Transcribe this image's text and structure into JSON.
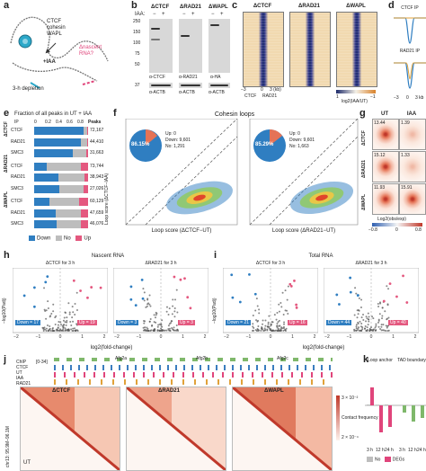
{
  "panels": {
    "a": {
      "letter": "a",
      "ctcf": "CTCF",
      "cohesin": "cohesin",
      "wapl": "WAPL",
      "nascent": "Δnascent RNA?",
      "iaa": "+IAA",
      "depletion": "3-h depletion"
    },
    "b": {
      "letter": "b",
      "conditions": [
        "ΔCTCF",
        "ΔRAD21",
        "ΔWAPL"
      ],
      "iaa_label": "IAA:",
      "iaa_states": [
        "−",
        "+",
        "−",
        "+",
        "−",
        "+"
      ],
      "markers": [
        "250",
        "150",
        "100",
        "75",
        "50",
        "37"
      ],
      "antibodies": [
        "α-CTCF",
        "α-RAD21",
        "α-HA"
      ],
      "loading": [
        "α-ACTB",
        "α-ACTB",
        "α-ACTB"
      ]
    },
    "c": {
      "letter": "c",
      "conditions": [
        "ΔCTCF",
        "ΔRAD21",
        "ΔWAPL"
      ],
      "axis": [
        "−3",
        "0",
        "3 (kb)"
      ],
      "anchors": [
        "CTCF",
        "RAD21"
      ],
      "scale": [
        "1",
        "−1"
      ],
      "scale_label": "log2(IAA/UT)"
    },
    "d": {
      "letter": "d",
      "titles": [
        "CTCF IP",
        "RAD21 IP"
      ],
      "ylabel": "Differential ChIP–seq signals (IAA/UT)",
      "lines": [
        "ΔCTCF",
        "ΔRAD21",
        "ΔWAPL"
      ],
      "ticks": [
        "0",
        "−0.5"
      ],
      "x_ticks": [
        "−3",
        "0",
        "3 kb"
      ]
    },
    "e": {
      "letter": "e",
      "title": "Fraction of all peaks in UT + IAA",
      "ip_label": "IP",
      "axis": [
        "0",
        "0.2",
        "0.4",
        "0.6",
        "0.8"
      ],
      "peaks_label": "Peaks",
      "groups": [
        "ΔCTCF",
        "ΔRAD21",
        "ΔWAPL"
      ],
      "rows": [
        {
          "ip": "CTCF",
          "peaks": "72,167",
          "down": 0.92,
          "no": 0.07
        },
        {
          "ip": "RAD21",
          "peaks": "44,410",
          "down": 0.86,
          "no": 0.12
        },
        {
          "ip": "SMC3",
          "peaks": "31,663",
          "down": 0.72,
          "no": 0.25
        },
        {
          "ip": "CTCF",
          "peaks": "73,744",
          "down": 0.24,
          "no": 0.62
        },
        {
          "ip": "RAD21",
          "peaks": "38,943",
          "down": 0.45,
          "no": 0.48
        },
        {
          "ip": "SMC3",
          "peaks": "27,026",
          "down": 0.47,
          "no": 0.45
        },
        {
          "ip": "CTCF",
          "peaks": "60,129",
          "down": 0.28,
          "no": 0.55
        },
        {
          "ip": "RAD21",
          "peaks": "47,659",
          "down": 0.4,
          "no": 0.47
        },
        {
          "ip": "SMC3",
          "peaks": "46,076",
          "down": 0.42,
          "no": 0.45
        }
      ],
      "legend": [
        "Down",
        "No",
        "Up"
      ]
    },
    "f": {
      "letter": "f",
      "title": "Cohesin loops",
      "left": {
        "pie_pct": "86.15%",
        "legend": [
          "Up: 0",
          "Down: 9,601",
          "No: 1,291"
        ],
        "xlabel": "Loop score (ΔCTCF−UT)",
        "ylabel": "Loop score (ΔCTCF−IAA)"
      },
      "right": {
        "pie_pct": "85.29%",
        "legend": [
          "Up: 0",
          "Down: 9,601",
          "No: 1,663"
        ],
        "xlabel": "Loop score (ΔRAD21−UT)",
        "ylabel": "Loop score (ΔRAD21−IAA)"
      }
    },
    "g": {
      "letter": "g",
      "cols": [
        "UT",
        "IAA"
      ],
      "rows": [
        {
          "name": "ΔCTCF",
          "ut": "13.44",
          "iaa": "1.39"
        },
        {
          "name": "ΔRAD21",
          "ut": "15.12",
          "iaa": "1.33"
        },
        {
          "name": "ΔWAPL",
          "ut": "11.93",
          "iaa": "15.91"
        }
      ],
      "scale_label": "Log2(obs/exp)",
      "scale_ticks": [
        "−0.8",
        "0",
        "0.8"
      ]
    },
    "h": {
      "letter": "h",
      "title": "Nascent RNA",
      "plots": [
        {
          "title": "ΔCTCF for 3 h",
          "down": "Down = 17",
          "up": "Up = 19"
        },
        {
          "title": "ΔRAD21 for 3 h",
          "down": "Down = 3",
          "up": "Up = 3"
        }
      ],
      "xlabel": "log2(fold-change)",
      "ylabel": "−log10(Padj)",
      "x_ticks": [
        "−2",
        "−1",
        "0",
        "1",
        "2"
      ],
      "genes": [
        "Tmem",
        "Dynll",
        "Arf",
        "Rac",
        "Thy1",
        "Nr4a1",
        "Hdx",
        "Jun",
        "Fos",
        "Egr1",
        "Gdf9"
      ]
    },
    "i": {
      "letter": "i",
      "title": "Total RNA",
      "plots": [
        {
          "title": "ΔCTCF for 3 h",
          "down": "Down = 21",
          "up": "Up = 16"
        },
        {
          "title": "ΔRAD21 for 3 h",
          "down": "Down = 44",
          "up": "Up = 40"
        }
      ],
      "xlabel": "log2(fold-change)",
      "ylabel": "−log10(Padj)",
      "x_ticks": [
        "−2",
        "−1",
        "0",
        "1",
        "2"
      ],
      "genes": [
        "Clspn",
        "Pcdh",
        "Ccne1",
        "Fgf5",
        "Usp",
        "Ier2",
        "Fos",
        "Cenpf",
        "Snap",
        "Myc"
      ]
    },
    "j": {
      "letter": "j",
      "genes": [
        "Afg2a",
        "Afg2b",
        "Afg2c"
      ],
      "tracks": [
        "ChIP",
        "CTCF",
        "UT",
        "IAA",
        "RAD21"
      ],
      "track_scale": "[0-34]",
      "maps": [
        "ΔCTCF",
        "ΔRAD21",
        "ΔWAPL"
      ],
      "corner": "UT",
      "coord": "chr13: 95.9M–96.1M",
      "scale": [
        "3 × 10⁻²",
        "2 × 10⁻⁴"
      ],
      "scale_label": "Contact frequency"
    },
    "k": {
      "letter": "k",
      "left": {
        "title": "Loop anchor",
        "ylabel": "log2(enrichment at 3D feature)",
        "times": [
          "3 h",
          "12 h",
          "24 h"
        ],
        "legend": [
          "No",
          "DEGs"
        ]
      },
      "right": {
        "title": "TAD boundary",
        "times": [
          "3 h",
          "12 h",
          "24 h"
        ],
        "legend": [
          "No",
          "DEGs"
        ]
      },
      "series": {
        "no": [
          0.05,
          0.04,
          0.05
        ],
        "degs": [
          1.0,
          -1.5,
          -1.2
        ],
        "tad_no": [
          0.03,
          0.02,
          0.03
        ],
        "tad_degs": [
          -0.4,
          -0.9,
          -0.7
        ]
      }
    },
    "colors": {
      "down": "#2f7ec1",
      "no": "#bdbdbd",
      "up": "#e4587f",
      "accent": "#e0457b"
    }
  }
}
